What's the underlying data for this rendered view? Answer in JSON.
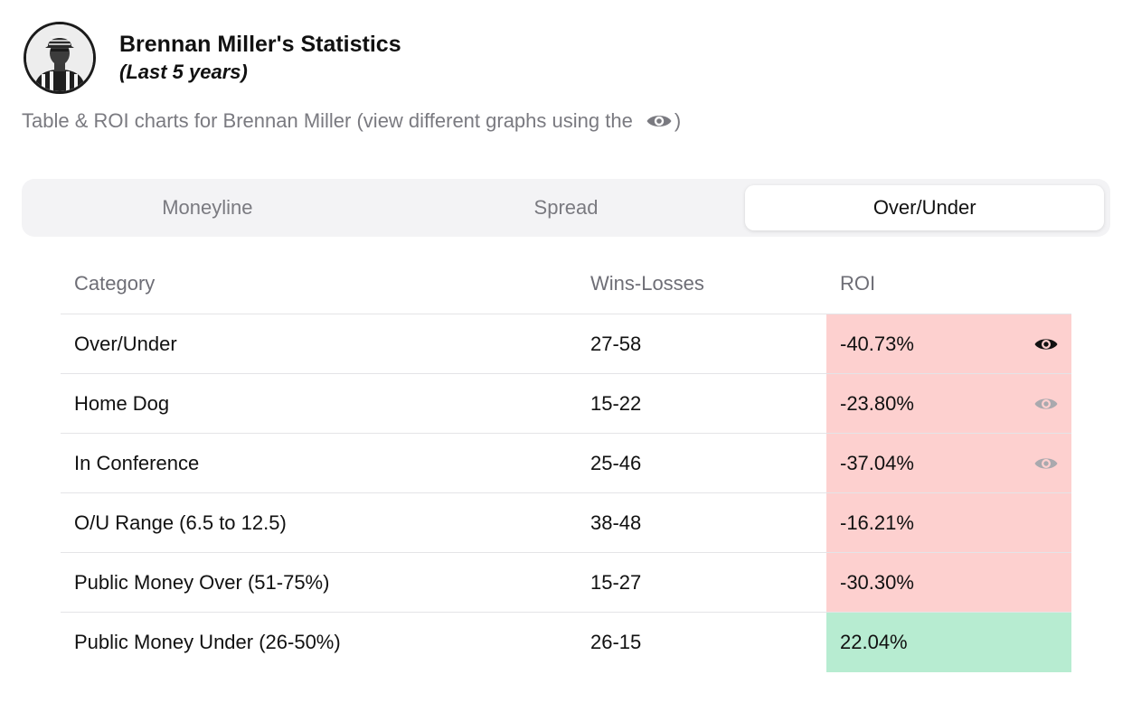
{
  "header": {
    "title": "Brennan Miller's Statistics",
    "subtitle": "(Last 5 years)",
    "avatar_icon": "referee-avatar"
  },
  "description": {
    "text": "Table & ROI charts for Brennan Miller (view different graphs using the",
    "suffix": ")",
    "icon": "eye-icon"
  },
  "tabs": [
    {
      "label": "Moneyline",
      "active": false
    },
    {
      "label": "Spread",
      "active": false
    },
    {
      "label": "Over/Under",
      "active": true
    }
  ],
  "table": {
    "columns": [
      "Category",
      "Wins-Losses",
      "ROI"
    ],
    "rows": [
      {
        "category": "Over/Under",
        "record": "27-58",
        "roi": "-40.73%",
        "eye": "selected"
      },
      {
        "category": "Home Dog",
        "record": "15-22",
        "roi": "-23.80%",
        "eye": "unselected"
      },
      {
        "category": "In Conference",
        "record": "25-46",
        "roi": "-37.04%",
        "eye": "unselected"
      },
      {
        "category": "O/U Range (6.5 to 12.5)",
        "record": "38-48",
        "roi": "-16.21%",
        "eye": "none"
      },
      {
        "category": "Public Money Over (51-75%)",
        "record": "15-27",
        "roi": "-30.30%",
        "eye": "none"
      },
      {
        "category": "Public Money Under (26-50%)",
        "record": "26-15",
        "roi": "22.04%",
        "eye": "none"
      }
    ]
  },
  "colors": {
    "roi_negative": "#fdd0cf",
    "roi_positive": "#b7ecd1",
    "eye_selected": "#111111",
    "eye_unselected": "#a9a9ae",
    "muted_text": "#7a7a80"
  }
}
